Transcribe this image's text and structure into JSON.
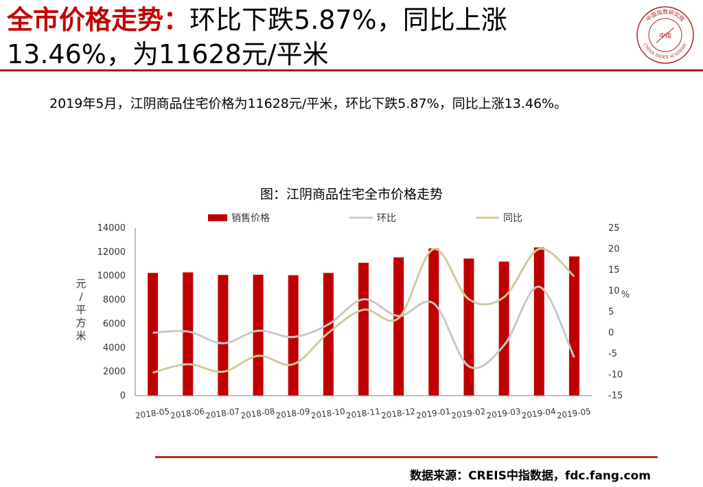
{
  "header": {
    "title_prefix": "全市价格走势：",
    "title_rest": "环比下跌5.87%，同比上涨",
    "title_line2": "13.46%，为11628元/平米"
  },
  "logo": {
    "name": "seal-logo",
    "text_top": "中国指数研究院",
    "text_center": "中指",
    "text_bottom": "CHINA INDEX ACADEMY"
  },
  "summary": "2019年5月，江阴商品住宅价格为11628元/平米，环比下跌5.87%，同比上涨13.46%。",
  "source": "数据来源：CREIS中指数据，fdc.fang.com",
  "colors": {
    "accent_red": "#c00000",
    "bar": "#c00000",
    "mom_line": "#c8c8c8",
    "yoy_line": "#d5c79b",
    "rule": "#b0301c"
  },
  "chart_data": {
    "type": "bar",
    "title": "图：江阴商品住宅全市价格走势",
    "categories": [
      "2018-05",
      "2018-06",
      "2018-07",
      "2018-08",
      "2018-09",
      "2018-10",
      "2018-11",
      "2018-12",
      "2019-01",
      "2019-02",
      "2019-03",
      "2019-04",
      "2019-05"
    ],
    "series": [
      {
        "name": "销售价格",
        "type": "bar",
        "axis": "left",
        "values": [
          10250,
          10300,
          10080,
          10100,
          10060,
          10250,
          11100,
          11550,
          12300,
          11450,
          11200,
          12380,
          11628
        ]
      },
      {
        "name": "环比",
        "type": "line",
        "axis": "right",
        "values": [
          0,
          0.3,
          -2.5,
          0.5,
          -1,
          2,
          8,
          4,
          7,
          -8,
          -3,
          11,
          -5.87
        ]
      },
      {
        "name": "同比",
        "type": "line",
        "axis": "right",
        "values": [
          -9.5,
          -7.5,
          -9.3,
          -5.5,
          -7.5,
          0,
          5.5,
          3.5,
          20,
          8,
          8.5,
          20,
          13.46
        ]
      }
    ],
    "ylabel": "元/平方米",
    "y2label": "%",
    "ylim": [
      0,
      14000
    ],
    "yticks": [
      0,
      2000,
      4000,
      6000,
      8000,
      10000,
      12000,
      14000
    ],
    "y2lim": [
      -15,
      25
    ],
    "y2ticks": [
      -15,
      -10,
      -5,
      0,
      5,
      10,
      15,
      20,
      25
    ],
    "grid": false,
    "legend": "top"
  }
}
